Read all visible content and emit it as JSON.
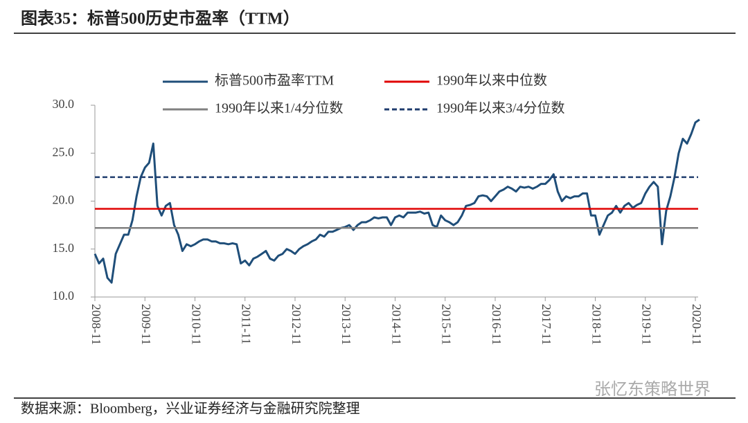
{
  "chart_data": {
    "type": "line",
    "title": "图表35：标普500历史市盈率（TTM）",
    "source": "数据来源：Bloomberg，兴业证券经济与金融研究院整理",
    "watermark": "张忆东策略世界",
    "x": [
      "2008-11",
      "2008-12",
      "2009-01",
      "2009-02",
      "2009-03",
      "2009-04",
      "2009-05",
      "2009-06",
      "2009-07",
      "2009-08",
      "2009-09",
      "2009-10",
      "2009-11",
      "2009-12",
      "2010-01",
      "2010-02",
      "2010-03",
      "2010-04",
      "2010-05",
      "2010-06",
      "2010-07",
      "2010-08",
      "2010-09",
      "2010-10",
      "2010-11",
      "2010-12",
      "2011-01",
      "2011-02",
      "2011-03",
      "2011-04",
      "2011-05",
      "2011-06",
      "2011-07",
      "2011-08",
      "2011-09",
      "2011-10",
      "2011-11",
      "2011-12",
      "2012-01",
      "2012-02",
      "2012-03",
      "2012-04",
      "2012-05",
      "2012-06",
      "2012-07",
      "2012-08",
      "2012-09",
      "2012-10",
      "2012-11",
      "2012-12",
      "2013-01",
      "2013-02",
      "2013-03",
      "2013-04",
      "2013-05",
      "2013-06",
      "2013-07",
      "2013-08",
      "2013-09",
      "2013-10",
      "2013-11",
      "2013-12",
      "2014-01",
      "2014-02",
      "2014-03",
      "2014-04",
      "2014-05",
      "2014-06",
      "2014-07",
      "2014-08",
      "2014-09",
      "2014-10",
      "2014-11",
      "2014-12",
      "2015-01",
      "2015-02",
      "2015-03",
      "2015-04",
      "2015-05",
      "2015-06",
      "2015-07",
      "2015-08",
      "2015-09",
      "2015-10",
      "2015-11",
      "2015-12",
      "2016-01",
      "2016-02",
      "2016-03",
      "2016-04",
      "2016-05",
      "2016-06",
      "2016-07",
      "2016-08",
      "2016-09",
      "2016-10",
      "2016-11",
      "2016-12",
      "2017-01",
      "2017-02",
      "2017-03",
      "2017-04",
      "2017-05",
      "2017-06",
      "2017-07",
      "2017-08",
      "2017-09",
      "2017-10",
      "2017-11",
      "2017-12",
      "2018-01",
      "2018-02",
      "2018-03",
      "2018-04",
      "2018-05",
      "2018-06",
      "2018-07",
      "2018-08",
      "2018-09",
      "2018-10",
      "2018-11",
      "2018-12",
      "2019-01",
      "2019-02",
      "2019-03",
      "2019-04",
      "2019-05",
      "2019-06",
      "2019-07",
      "2019-08",
      "2019-09",
      "2019-10",
      "2019-11",
      "2019-12",
      "2020-01",
      "2020-02",
      "2020-03",
      "2020-04",
      "2020-05",
      "2020-06",
      "2020-07",
      "2020-08",
      "2020-09",
      "2020-10",
      "2020-11",
      "2020-12"
    ],
    "series": [
      {
        "name": "标普500市盈率TTM",
        "color": "#1f4e79",
        "values": [
          14.5,
          13.5,
          14.0,
          12.0,
          11.5,
          14.5,
          15.5,
          16.5,
          16.5,
          18.0,
          20.5,
          22.5,
          23.5,
          24.0,
          26.0,
          19.5,
          18.5,
          19.5,
          19.8,
          17.5,
          16.5,
          14.8,
          15.5,
          15.3,
          15.5,
          15.8,
          16.0,
          16.0,
          15.8,
          15.8,
          15.6,
          15.6,
          15.5,
          15.6,
          15.5,
          13.5,
          13.8,
          13.3,
          14.0,
          14.2,
          14.5,
          14.8,
          14.0,
          13.8,
          14.3,
          14.5,
          15.0,
          14.8,
          14.5,
          15.0,
          15.3,
          15.5,
          15.8,
          16.0,
          16.5,
          16.3,
          16.8,
          16.8,
          17.0,
          17.2,
          17.3,
          17.5,
          17.0,
          17.5,
          17.8,
          17.8,
          18.0,
          18.3,
          18.2,
          18.3,
          18.3,
          17.5,
          18.3,
          18.5,
          18.3,
          18.8,
          18.8,
          18.8,
          18.9,
          18.7,
          18.8,
          17.5,
          17.3,
          18.5,
          18.0,
          17.8,
          17.5,
          17.8,
          18.5,
          19.5,
          19.6,
          19.8,
          20.5,
          20.6,
          20.5,
          20.0,
          20.5,
          21.0,
          21.2,
          21.5,
          21.3,
          21.0,
          21.5,
          21.4,
          21.5,
          21.3,
          21.5,
          21.8,
          21.8,
          22.2,
          22.8,
          21.0,
          20.0,
          20.5,
          20.3,
          20.5,
          20.5,
          20.8,
          20.8,
          18.5,
          18.5,
          16.5,
          17.5,
          18.5,
          18.8,
          19.5,
          18.8,
          19.5,
          19.8,
          19.3,
          19.6,
          19.8,
          20.8,
          21.5,
          22.0,
          21.5,
          15.5,
          19.0,
          20.5,
          22.5,
          25.0,
          26.5,
          26.0,
          27.0,
          28.2,
          28.5
        ]
      }
    ],
    "reference_lines": [
      {
        "name": "1990年以来中位数",
        "value": 19.2,
        "color": "#e00000",
        "style": "solid"
      },
      {
        "name": "1990年以来1/4分位数",
        "value": 17.2,
        "color": "#808080",
        "style": "solid"
      },
      {
        "name": "1990年以来3/4分位数",
        "value": 22.5,
        "color": "#1f3c6e",
        "style": "dashed"
      }
    ],
    "ylim": [
      10,
      30
    ],
    "yticks": [
      {
        "value": 10,
        "label": "10.0"
      },
      {
        "value": 15,
        "label": "15.0"
      },
      {
        "value": 20,
        "label": "20.0"
      },
      {
        "value": 25,
        "label": "25.0"
      },
      {
        "value": 30,
        "label": "30.0"
      }
    ],
    "xticks": [
      "2008-11",
      "2009-11",
      "2010-11",
      "2011-11",
      "2012-11",
      "2013-11",
      "2014-11",
      "2015-11",
      "2016-11",
      "2017-11",
      "2018-11",
      "2019-11",
      "2020-11"
    ]
  }
}
